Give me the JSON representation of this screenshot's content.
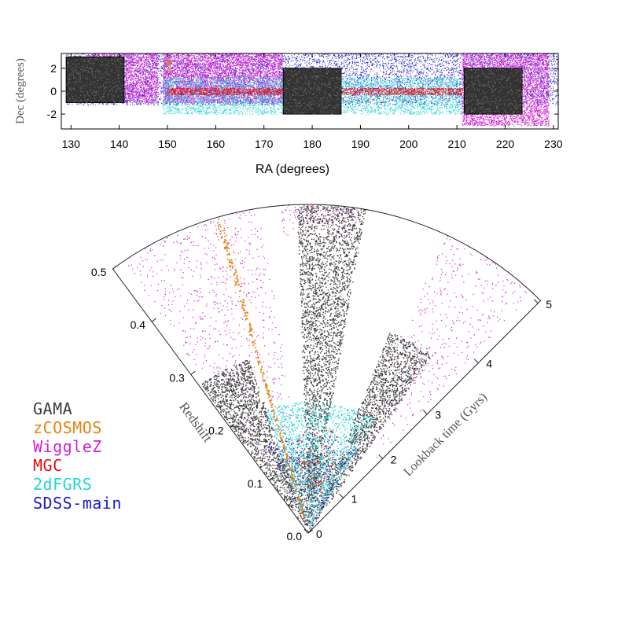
{
  "chart_data": [
    {
      "type": "scatter",
      "xlabel": "RA (degrees)",
      "ylabel": "Dec (degrees)",
      "xlim": [
        128,
        231
      ],
      "ylim": [
        -3.3,
        3.3
      ],
      "x_ticks": [
        130,
        140,
        150,
        160,
        170,
        180,
        190,
        200,
        210,
        220,
        230
      ],
      "y_ticks": [
        -2,
        0,
        2
      ],
      "regions": [
        {
          "survey": "SDSS-main",
          "ra": [
            129,
            231
          ],
          "dec": [
            -1.2,
            3.3
          ]
        },
        {
          "survey": "WiggleZ",
          "ra": [
            134,
            148
          ],
          "dec": [
            -1.0,
            3.3
          ]
        },
        {
          "survey": "WiggleZ",
          "ra": [
            149,
            174
          ],
          "dec": [
            -1.0,
            3.3
          ]
        },
        {
          "survey": "WiggleZ",
          "ra": [
            211,
            229
          ],
          "dec": [
            -3.0,
            3.3
          ]
        },
        {
          "survey": "2dFGRS",
          "ra": [
            149,
            211
          ],
          "dec": [
            -2.0,
            1.2
          ]
        },
        {
          "survey": "MGC",
          "ra": [
            150,
            211
          ],
          "dec": [
            -0.3,
            0.3
          ]
        },
        {
          "survey": "zCOSMOS",
          "ra": [
            149.9,
            150.6
          ],
          "dec": [
            1.7,
            2.8
          ]
        },
        {
          "survey": "GAMA",
          "ra": [
            129,
            141
          ],
          "dec": [
            -1,
            3
          ]
        },
        {
          "survey": "GAMA",
          "ra": [
            174,
            186
          ],
          "dec": [
            -2,
            2
          ]
        },
        {
          "survey": "GAMA",
          "ra": [
            211.5,
            223.5
          ],
          "dec": [
            -2,
            2
          ]
        }
      ]
    },
    {
      "type": "scatter",
      "subtype": "cone-diagram",
      "ylabel_left": "Redshift",
      "ylabel_right": "Lookback time (Gyrs)",
      "redshift_ticks": [
        "0.0",
        "0.1",
        "0.2",
        "0.3",
        "0.4",
        "0.5"
      ],
      "lookback_ticks": [
        "0",
        "1",
        "2",
        "3",
        "4",
        "5"
      ],
      "zmax": 0.5
    }
  ],
  "legend": [
    {
      "name": "GAMA",
      "color": "#3a3a3a"
    },
    {
      "name": "zCOSMOS",
      "color": "#e8820e"
    },
    {
      "name": "WiggleZ",
      "color": "#d21ed2"
    },
    {
      "name": "MGC",
      "color": "#e01010"
    },
    {
      "name": "2dFGRS",
      "color": "#25d4d4"
    },
    {
      "name": "SDSS-main",
      "color": "#1a1acc"
    }
  ],
  "colors": {
    "GAMA": "#3a3a3a",
    "zCOSMOS": "#e8820e",
    "WiggleZ": "#d21ed2",
    "MGC": "#e01010",
    "2dFGRS": "#25d4d4",
    "SDSS-main": "#1a1acc"
  }
}
